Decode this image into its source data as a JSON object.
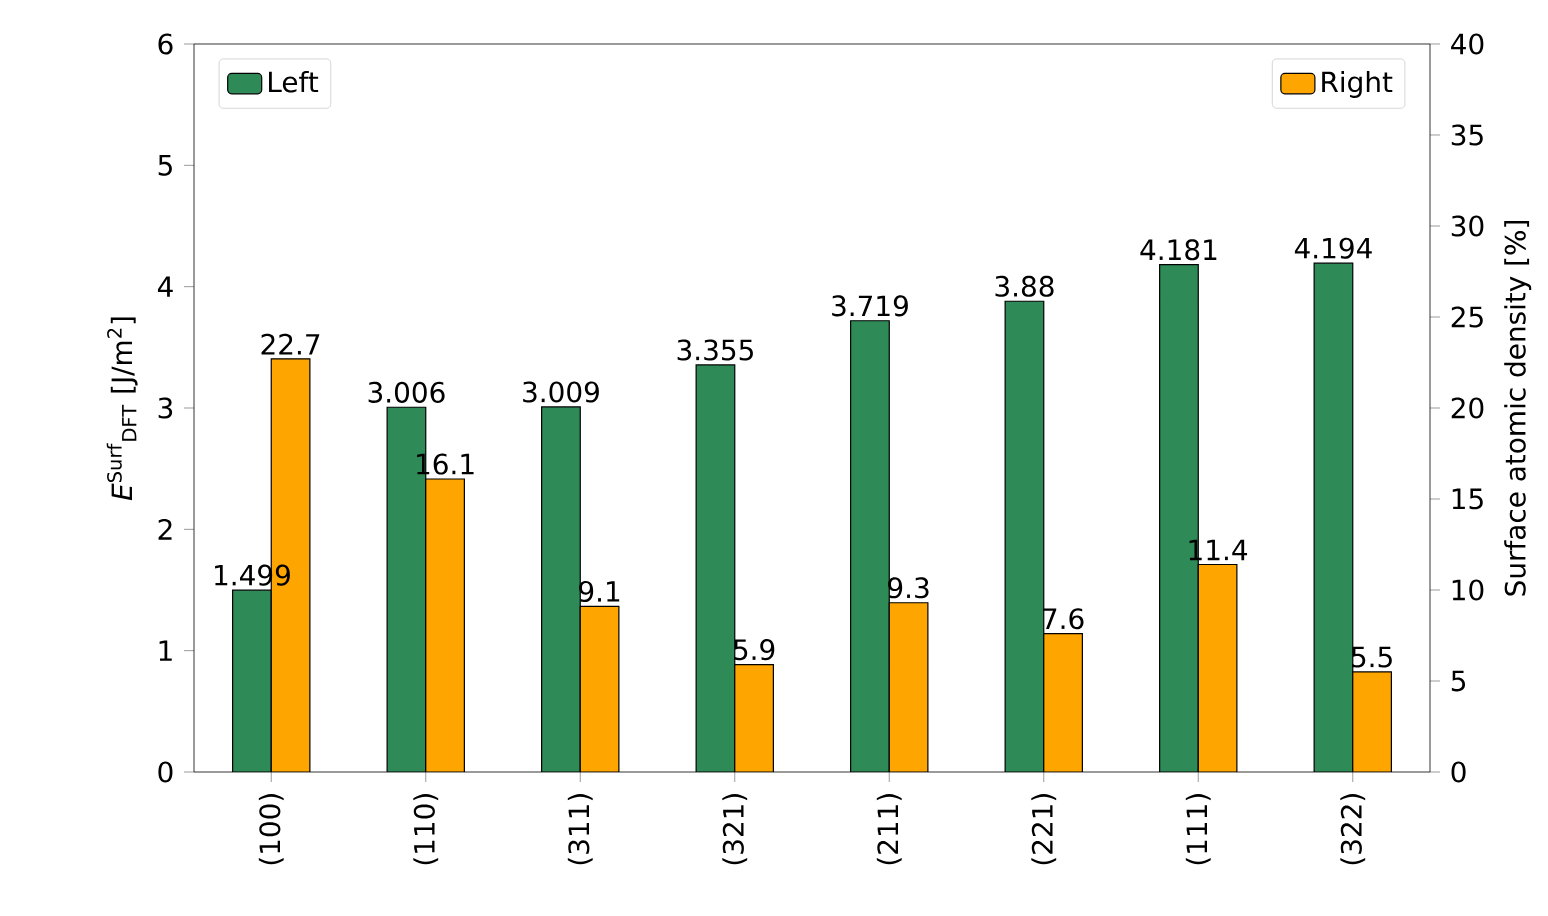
{
  "chart_data": {
    "type": "bar",
    "categories": [
      "(100)",
      "(110)",
      "(311)",
      "(321)",
      "(211)",
      "(221)",
      "(111)",
      "(322)"
    ],
    "ylabel": "*E*$^{Surf}$$_{DFT}$ [J/m$^{2}$]",
    "y2label": "Surface atomic density [%]",
    "series": [
      {
        "name": "Left",
        "color": "#2e8b57",
        "values": [
          1.499,
          3.006,
          3.009,
          3.355,
          3.719,
          3.88,
          4.181,
          4.194
        ]
      },
      {
        "name": "Right",
        "color": "#ffa500",
        "axis": "y2",
        "values": [
          22.7,
          16.1,
          9.1,
          5.9,
          9.3,
          7.6,
          11.4,
          5.5
        ]
      }
    ],
    "ylim": [
      0,
      6
    ],
    "yticks": [
      0,
      1,
      2,
      3,
      4,
      5,
      6
    ],
    "y2lim": [
      0,
      40
    ],
    "y2ticks": [
      0,
      5,
      10,
      15,
      20,
      25,
      30,
      35,
      40
    ],
    "data_labels": true,
    "legend": "top",
    "grid": false
  }
}
